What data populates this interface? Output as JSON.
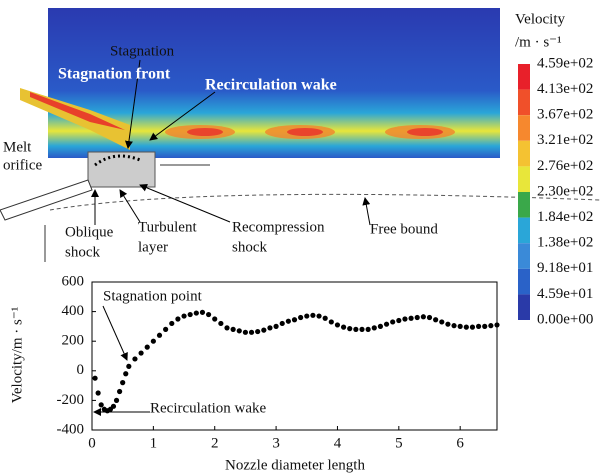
{
  "chart_data": [
    {
      "type": "contour",
      "colorbar_title": [
        "Velocity",
        "/m · s⁻¹"
      ],
      "colorbar_ticks": [
        {
          "value": 459,
          "label": "4.59e+02"
        },
        {
          "value": 413,
          "label": "4.13e+02"
        },
        {
          "value": 367,
          "label": "3.67e+02"
        },
        {
          "value": 321,
          "label": "3.21e+02"
        },
        {
          "value": 276,
          "label": "2.76e+02"
        },
        {
          "value": 230,
          "label": "2.30e+02"
        },
        {
          "value": 184,
          "label": "1.84e+02"
        },
        {
          "value": 138,
          "label": "1.38e+02"
        },
        {
          "value": 91.8,
          "label": "9.18e+01"
        },
        {
          "value": 45.9,
          "label": "4.59e+01"
        },
        {
          "value": 0,
          "label": "0.00e+00"
        }
      ],
      "colors": [
        "#e8202a",
        "#f0502a",
        "#f6882e",
        "#f4c232",
        "#e8e63a",
        "#3aa84a",
        "#2aa6d8",
        "#3a8ad8",
        "#2a62c8",
        "#2a3aa8"
      ],
      "annotations": [
        "Stagnation",
        "Stagnation front",
        "Recirculation wake",
        "Melt",
        "orifice",
        "Oblique",
        "shock",
        "Turbulent",
        "layer",
        "Recompression",
        "shock",
        "Free bound"
      ]
    },
    {
      "type": "scatter",
      "ylabel": "Velocity/m · s⁻¹",
      "xlabel": "Nozzle diameter length",
      "annotations": [
        "Stagnation point",
        "Recirculation wake"
      ],
      "color": "#000000",
      "xlim": [
        0,
        6.6
      ],
      "ylim": [
        -400,
        600
      ],
      "xticks": [
        0,
        1,
        2,
        3,
        4,
        5,
        6
      ],
      "yticks": [
        -400,
        -200,
        0,
        200,
        400,
        600
      ],
      "x": [
        0.05,
        0.1,
        0.15,
        0.2,
        0.25,
        0.3,
        0.35,
        0.4,
        0.45,
        0.5,
        0.55,
        0.6,
        0.7,
        0.8,
        0.9,
        1.0,
        1.1,
        1.2,
        1.3,
        1.4,
        1.5,
        1.6,
        1.7,
        1.8,
        1.9,
        2.0,
        2.1,
        2.2,
        2.3,
        2.4,
        2.5,
        2.6,
        2.7,
        2.8,
        2.9,
        3.0,
        3.1,
        3.2,
        3.3,
        3.4,
        3.5,
        3.6,
        3.7,
        3.8,
        3.9,
        4.0,
        4.1,
        4.2,
        4.3,
        4.4,
        4.5,
        4.6,
        4.7,
        4.8,
        4.9,
        5.0,
        5.1,
        5.2,
        5.3,
        5.4,
        5.5,
        5.6,
        5.7,
        5.8,
        5.9,
        6.0,
        6.1,
        6.2,
        6.3,
        6.4,
        6.5,
        6.6
      ],
      "values": [
        -50,
        -150,
        -230,
        -260,
        -270,
        -260,
        -240,
        -200,
        -140,
        -80,
        -20,
        30,
        80,
        120,
        160,
        200,
        240,
        280,
        320,
        350,
        370,
        380,
        390,
        395,
        380,
        350,
        320,
        290,
        280,
        270,
        260,
        260,
        265,
        275,
        290,
        300,
        320,
        335,
        345,
        360,
        370,
        375,
        370,
        355,
        330,
        310,
        295,
        285,
        280,
        280,
        280,
        290,
        300,
        315,
        330,
        340,
        350,
        355,
        360,
        365,
        360,
        345,
        330,
        315,
        305,
        300,
        295,
        295,
        300,
        300,
        305,
        310
      ]
    }
  ]
}
